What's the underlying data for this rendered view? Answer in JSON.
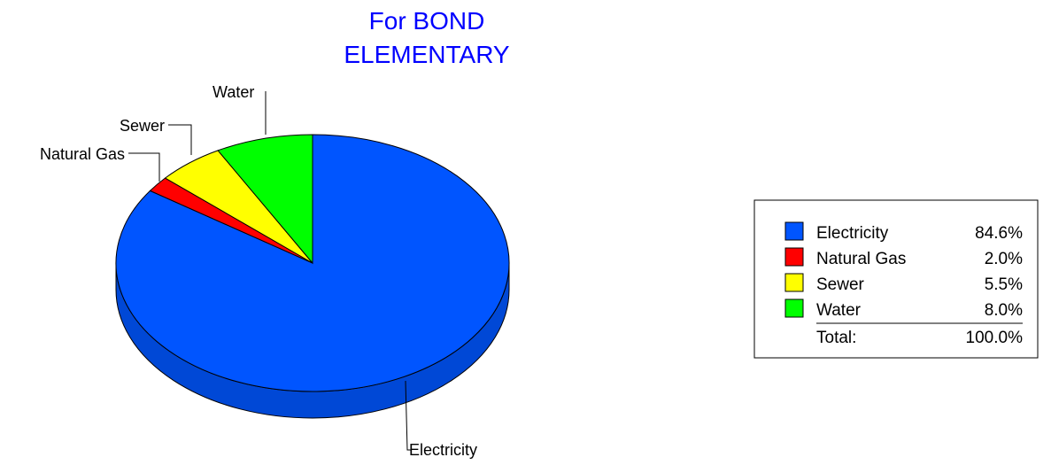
{
  "chart_data": {
    "type": "pie",
    "title_lines": [
      "For BOND",
      "ELEMENTARY"
    ],
    "slices": [
      {
        "label": "Electricity",
        "value": 84.6,
        "value_label": "84.6%",
        "color": "#0055ff",
        "side_color": "#0048d6"
      },
      {
        "label": "Natural Gas",
        "value": 2.0,
        "value_label": "2.0%",
        "color": "#ff0000",
        "side_color": "#cc0000"
      },
      {
        "label": "Sewer",
        "value": 5.5,
        "value_label": "5.5%",
        "color": "#ffff00",
        "side_color": "#cccc00"
      },
      {
        "label": "Water",
        "value": 8.0,
        "value_label": "8.0%",
        "color": "#00ff00",
        "side_color": "#00cc00"
      }
    ],
    "total_label": "Total:",
    "total_value": "100.0%",
    "legend_position": "right"
  }
}
